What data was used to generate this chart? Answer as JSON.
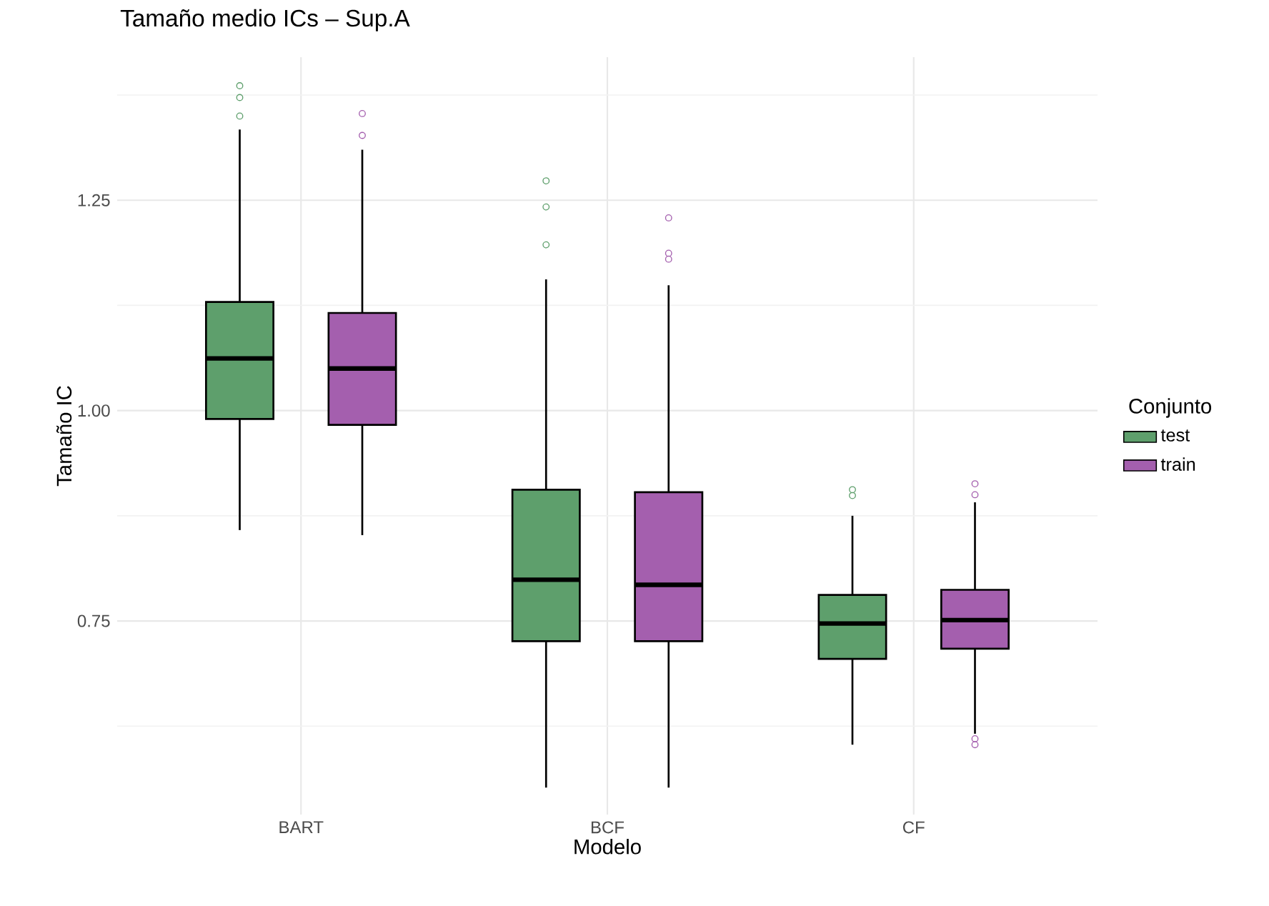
{
  "chart_data": {
    "type": "box",
    "title": "Tamaño medio ICs – Sup.A",
    "xlabel": "Modelo",
    "ylabel": "Tamaño IC",
    "legend_title": "Conjunto",
    "categories": [
      "BART",
      "BCF",
      "CF"
    ],
    "ylim": [
      0.52,
      1.42
    ],
    "yticks": [
      0.75,
      {
        "value": 1.0,
        "label": "1.00"
      },
      1.25
    ],
    "grid": true,
    "legend": "right",
    "series": [
      {
        "name": "test",
        "color": "#5e9f6c",
        "boxes": [
          {
            "low": 0.858,
            "q1": 0.99,
            "median": 1.062,
            "q3": 1.129,
            "high": 1.334,
            "outliers": [
              1.386,
              1.372,
              1.35
            ]
          },
          {
            "low": 0.552,
            "q1": 0.726,
            "median": 0.799,
            "q3": 0.906,
            "high": 1.156,
            "outliers": [
              1.273,
              1.242,
              1.197
            ]
          },
          {
            "low": 0.603,
            "q1": 0.705,
            "median": 0.747,
            "q3": 0.781,
            "high": 0.875,
            "outliers": [
              0.906,
              0.899
            ]
          }
        ]
      },
      {
        "name": "train",
        "color": "#a45fae",
        "boxes": [
          {
            "low": 0.852,
            "q1": 0.983,
            "median": 1.05,
            "q3": 1.116,
            "high": 1.31,
            "outliers": [
              1.353,
              1.327
            ]
          },
          {
            "low": 0.552,
            "q1": 0.726,
            "median": 0.793,
            "q3": 0.903,
            "high": 1.149,
            "outliers": [
              1.229,
              1.187,
              1.18
            ]
          },
          {
            "low": 0.616,
            "q1": 0.717,
            "median": 0.751,
            "q3": 0.787,
            "high": 0.891,
            "outliers": [
              0.913,
              0.9,
              0.61,
              0.603
            ]
          }
        ]
      }
    ]
  }
}
